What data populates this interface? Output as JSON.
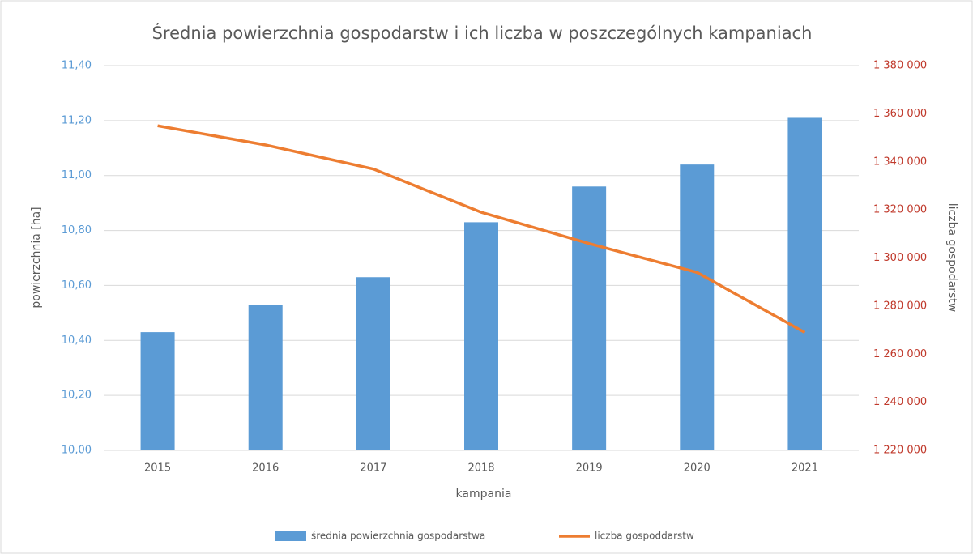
{
  "chart_data": {
    "type": "bar_line",
    "title": "Średnia powierzchnia gospodarstw i ich liczba w poszczególnych kampaniach",
    "x_label": "kampania",
    "y_label": "powierzchnia [ha]",
    "y2_label": "liczba gospodarstw",
    "categories": [
      "2015",
      "2016",
      "2017",
      "2018",
      "2019",
      "2020",
      "2021"
    ],
    "series": [
      {
        "name": "średnia powierzchnia gospodarstwa",
        "type": "bar",
        "color": "#5b9bd5",
        "values": [
          10.43,
          10.53,
          10.63,
          10.83,
          10.96,
          11.04,
          11.21
        ]
      },
      {
        "name": "liczba gospoddarstw",
        "type": "line",
        "axis": "y2",
        "color": "#ed7d31",
        "values": [
          1355000,
          1347000,
          1337000,
          1319000,
          1306000,
          1294000,
          1269000
        ]
      }
    ],
    "ylim": [
      10.0,
      11.4
    ],
    "yticks": [
      {
        "value": 10.0,
        "label": "10,00"
      },
      {
        "value": 10.2,
        "label": "10,20"
      },
      {
        "value": 10.4,
        "label": "10,40"
      },
      {
        "value": 10.6,
        "label": "10,60"
      },
      {
        "value": 10.8,
        "label": "10,80"
      },
      {
        "value": 11.0,
        "label": "11,00"
      },
      {
        "value": 11.2,
        "label": "11,20"
      },
      {
        "value": 11.4,
        "label": "11,40"
      }
    ],
    "y2lim": [
      1220000,
      1380000
    ],
    "y2ticks": [
      {
        "value": 1220000,
        "label": "1 220 000"
      },
      {
        "value": 1240000,
        "label": "1 240 000"
      },
      {
        "value": 1260000,
        "label": "1 260 000"
      },
      {
        "value": 1280000,
        "label": "1 280 000"
      },
      {
        "value": 1300000,
        "label": "1 300 000"
      },
      {
        "value": 1320000,
        "label": "1 320 000"
      },
      {
        "value": 1340000,
        "label": "1 340 000"
      },
      {
        "value": 1360000,
        "label": "1 360 000"
      },
      {
        "value": 1380000,
        "label": "1 380 000"
      }
    ],
    "grid": true,
    "legend": "bottom",
    "y_tick_color": "#5b9bd5",
    "y2_tick_color": "#c0392b"
  }
}
